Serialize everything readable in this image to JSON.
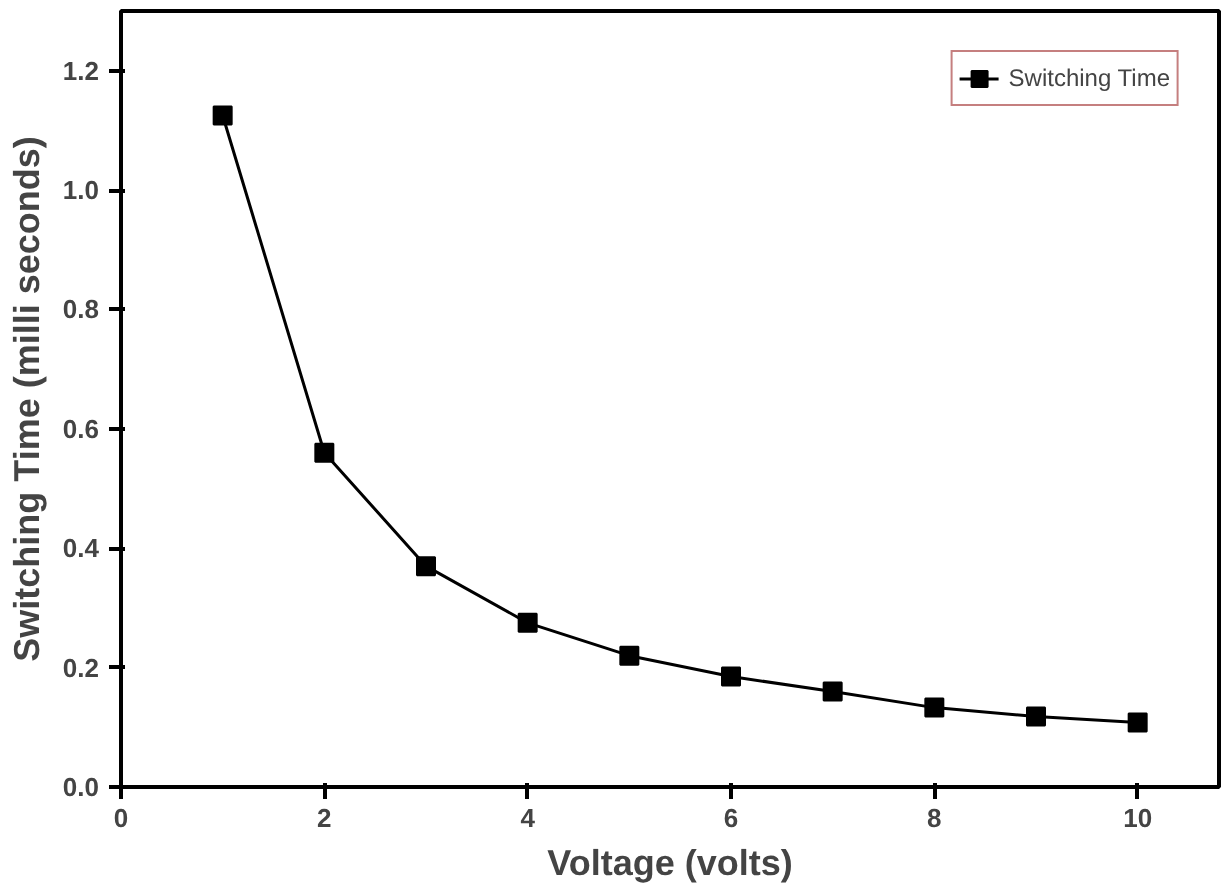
{
  "chart_data": {
    "type": "line",
    "xlabel": "Voltage (volts)",
    "ylabel": "Switching Time (milli seconds)",
    "x": [
      1,
      2,
      3,
      4,
      5,
      6,
      7,
      8,
      9,
      10
    ],
    "series": [
      {
        "name": "Switching Time",
        "color": "#000000",
        "values": [
          1.125,
          0.56,
          0.37,
          0.275,
          0.22,
          0.185,
          0.16,
          0.133,
          0.118,
          0.108
        ]
      }
    ],
    "xlim": [
      0,
      10.8
    ],
    "ylim": [
      0,
      1.3
    ],
    "xticks": [
      0,
      2,
      4,
      6,
      8,
      10
    ],
    "yticks": [
      {
        "value": 0,
        "label": "0.0"
      },
      0.2,
      0.4,
      0.6,
      0.8,
      {
        "value": 1,
        "label": "1.0"
      },
      1.2
    ],
    "marker": "square",
    "line_style": "solid",
    "grid": false,
    "legend": "top right"
  }
}
